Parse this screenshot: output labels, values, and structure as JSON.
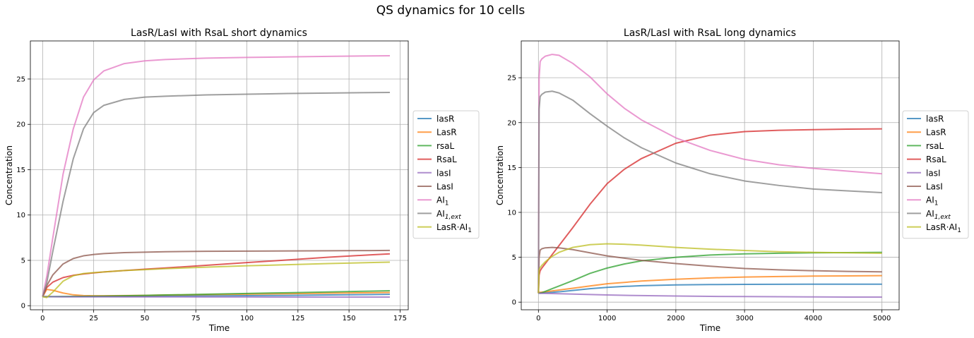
{
  "figure_title": "QS dynamics for 10 cells",
  "colors": {
    "lasR": "#1f77b4",
    "LasR": "#ff7f0e",
    "rsaL": "#2ca02c",
    "RsaL": "#d62728",
    "lasI": "#9467bd",
    "LasI": "#8c564b",
    "AI1": "#e377c2",
    "AI1ext": "#7f7f7f",
    "LasR_AI1": "#bcbd22"
  },
  "legend": [
    {
      "key": "lasR",
      "label": "lasR",
      "sub": ""
    },
    {
      "key": "LasR",
      "label": "LasR",
      "sub": ""
    },
    {
      "key": "rsaL",
      "label": "rsaL",
      "sub": ""
    },
    {
      "key": "RsaL",
      "label": "RsaL",
      "sub": ""
    },
    {
      "key": "lasI",
      "label": "lasI",
      "sub": ""
    },
    {
      "key": "LasI",
      "label": "LasI",
      "sub": ""
    },
    {
      "key": "AI1",
      "label": "AI",
      "sub": "1"
    },
    {
      "key": "AI1ext",
      "label": "AI",
      "sub": "1,ext"
    },
    {
      "key": "LasR_AI1",
      "label": "LasR·AI",
      "sub": "1"
    }
  ],
  "chart_data": [
    {
      "type": "line",
      "title": "LasR/LasI with RsaL short dynamics",
      "xlabel": "Time",
      "ylabel": "Concentration",
      "xlim": [
        -6,
        179
      ],
      "ylim": [
        -0.45,
        29.2
      ],
      "xticks": [
        0,
        25,
        50,
        75,
        100,
        125,
        150,
        175
      ],
      "yticks": [
        0,
        5,
        10,
        15,
        20,
        25
      ],
      "grid": true,
      "legend_position": "right-outside",
      "x": [
        0,
        2,
        5,
        10,
        15,
        20,
        25,
        30,
        40,
        50,
        60,
        80,
        100,
        120,
        140,
        160,
        170
      ],
      "series": [
        {
          "name": "lasR",
          "key": "lasR",
          "values": [
            1.0,
            1.0,
            1.0,
            1.0,
            1.0,
            1.0,
            1.0,
            1.01,
            1.02,
            1.03,
            1.05,
            1.08,
            1.11,
            1.14,
            1.18,
            1.22,
            1.25
          ]
        },
        {
          "name": "LasR",
          "key": "LasR",
          "values": [
            1.0,
            1.8,
            1.7,
            1.4,
            1.2,
            1.12,
            1.1,
            1.1,
            1.12,
            1.14,
            1.17,
            1.22,
            1.27,
            1.32,
            1.38,
            1.43,
            1.46
          ]
        },
        {
          "name": "rsaL",
          "key": "rsaL",
          "values": [
            1.0,
            1.0,
            1.0,
            1.01,
            1.02,
            1.03,
            1.05,
            1.06,
            1.1,
            1.14,
            1.18,
            1.26,
            1.35,
            1.43,
            1.52,
            1.6,
            1.65
          ]
        },
        {
          "name": "RsaL",
          "key": "RsaL",
          "values": [
            1.0,
            2.0,
            2.6,
            3.1,
            3.35,
            3.5,
            3.62,
            3.72,
            3.88,
            4.02,
            4.16,
            4.45,
            4.75,
            5.05,
            5.35,
            5.6,
            5.72
          ]
        },
        {
          "name": "lasI",
          "key": "lasI",
          "values": [
            1.0,
            1.0,
            0.99,
            0.98,
            0.98,
            0.98,
            0.98,
            0.98,
            0.97,
            0.97,
            0.97,
            0.96,
            0.96,
            0.95,
            0.95,
            0.95,
            0.95
          ]
        },
        {
          "name": "LasI",
          "key": "LasI",
          "values": [
            1.0,
            2.2,
            3.4,
            4.6,
            5.2,
            5.5,
            5.65,
            5.75,
            5.85,
            5.9,
            5.95,
            6.0,
            6.02,
            6.04,
            6.06,
            6.08,
            6.1
          ]
        },
        {
          "name": "AI1",
          "key": "AI1",
          "values": [
            1.0,
            3.2,
            7.5,
            14.5,
            19.5,
            23.0,
            24.9,
            25.9,
            26.7,
            27.0,
            27.15,
            27.3,
            27.38,
            27.44,
            27.5,
            27.55,
            27.57
          ]
        },
        {
          "name": "AI1,ext",
          "key": "AI1ext",
          "values": [
            1.0,
            2.5,
            6.0,
            11.5,
            16.2,
            19.5,
            21.3,
            22.1,
            22.75,
            23.0,
            23.1,
            23.25,
            23.32,
            23.4,
            23.45,
            23.5,
            23.52
          ]
        },
        {
          "name": "LasR·AI1",
          "key": "LasR_AI1",
          "values": [
            1.0,
            0.9,
            1.5,
            2.7,
            3.3,
            3.55,
            3.65,
            3.72,
            3.88,
            3.98,
            4.08,
            4.25,
            4.4,
            4.52,
            4.65,
            4.75,
            4.8
          ]
        }
      ]
    },
    {
      "type": "line",
      "title": "LasR/LasI with RsaL long dynamics",
      "xlabel": "Time",
      "ylabel": "Concentration",
      "xlim": [
        -250,
        5250
      ],
      "ylim": [
        -0.85,
        29.1
      ],
      "xticks": [
        0,
        1000,
        2000,
        3000,
        4000,
        5000
      ],
      "yticks": [
        0,
        5,
        10,
        15,
        20,
        25
      ],
      "grid": true,
      "legend_position": "right-outside",
      "x": [
        0,
        10,
        25,
        50,
        100,
        200,
        300,
        500,
        750,
        1000,
        1250,
        1500,
        2000,
        2500,
        3000,
        3500,
        4000,
        4500,
        5000
      ],
      "series": [
        {
          "name": "lasR",
          "key": "lasR",
          "values": [
            1.0,
            1.0,
            1.0,
            1.02,
            1.05,
            1.1,
            1.15,
            1.3,
            1.5,
            1.65,
            1.75,
            1.83,
            1.92,
            1.96,
            1.98,
            1.99,
            2.0,
            2.0,
            2.0
          ]
        },
        {
          "name": "LasR",
          "key": "LasR",
          "values": [
            1.0,
            1.1,
            1.1,
            1.12,
            1.15,
            1.25,
            1.35,
            1.55,
            1.8,
            2.05,
            2.2,
            2.35,
            2.55,
            2.7,
            2.8,
            2.85,
            2.9,
            2.92,
            2.95
          ]
        },
        {
          "name": "rsaL",
          "key": "rsaL",
          "values": [
            1.0,
            1.0,
            1.02,
            1.05,
            1.2,
            1.5,
            1.8,
            2.4,
            3.2,
            3.8,
            4.25,
            4.6,
            5.0,
            5.25,
            5.38,
            5.45,
            5.5,
            5.52,
            5.55
          ]
        },
        {
          "name": "RsaL",
          "key": "RsaL",
          "values": [
            1.0,
            3.0,
            3.5,
            3.8,
            4.3,
            5.3,
            6.3,
            8.3,
            10.9,
            13.2,
            14.8,
            16.0,
            17.7,
            18.6,
            19.0,
            19.15,
            19.22,
            19.27,
            19.3
          ]
        },
        {
          "name": "lasI",
          "key": "lasI",
          "values": [
            1.0,
            1.0,
            0.99,
            0.99,
            0.98,
            0.96,
            0.94,
            0.9,
            0.85,
            0.8,
            0.76,
            0.73,
            0.68,
            0.64,
            0.62,
            0.6,
            0.58,
            0.57,
            0.56
          ]
        },
        {
          "name": "LasI",
          "key": "LasI",
          "values": [
            1.0,
            5.0,
            5.8,
            5.95,
            6.05,
            6.1,
            6.05,
            5.85,
            5.5,
            5.15,
            4.9,
            4.65,
            4.3,
            4.0,
            3.75,
            3.6,
            3.5,
            3.42,
            3.38
          ]
        },
        {
          "name": "AI1",
          "key": "AI1",
          "values": [
            1.0,
            25.0,
            26.8,
            27.1,
            27.4,
            27.6,
            27.5,
            26.6,
            25.1,
            23.2,
            21.6,
            20.3,
            18.3,
            16.9,
            15.9,
            15.3,
            14.9,
            14.6,
            14.3
          ]
        },
        {
          "name": "AI1,ext",
          "key": "AI1ext",
          "values": [
            1.0,
            21.5,
            22.9,
            23.15,
            23.4,
            23.5,
            23.3,
            22.5,
            21.0,
            19.6,
            18.3,
            17.2,
            15.5,
            14.3,
            13.5,
            13.0,
            12.6,
            12.4,
            12.2
          ]
        },
        {
          "name": "LasR·AI1",
          "key": "LasR_AI1",
          "values": [
            1.0,
            3.6,
            3.85,
            4.1,
            4.5,
            5.1,
            5.55,
            6.1,
            6.4,
            6.5,
            6.45,
            6.35,
            6.1,
            5.9,
            5.75,
            5.62,
            5.55,
            5.5,
            5.45
          ]
        }
      ]
    }
  ]
}
